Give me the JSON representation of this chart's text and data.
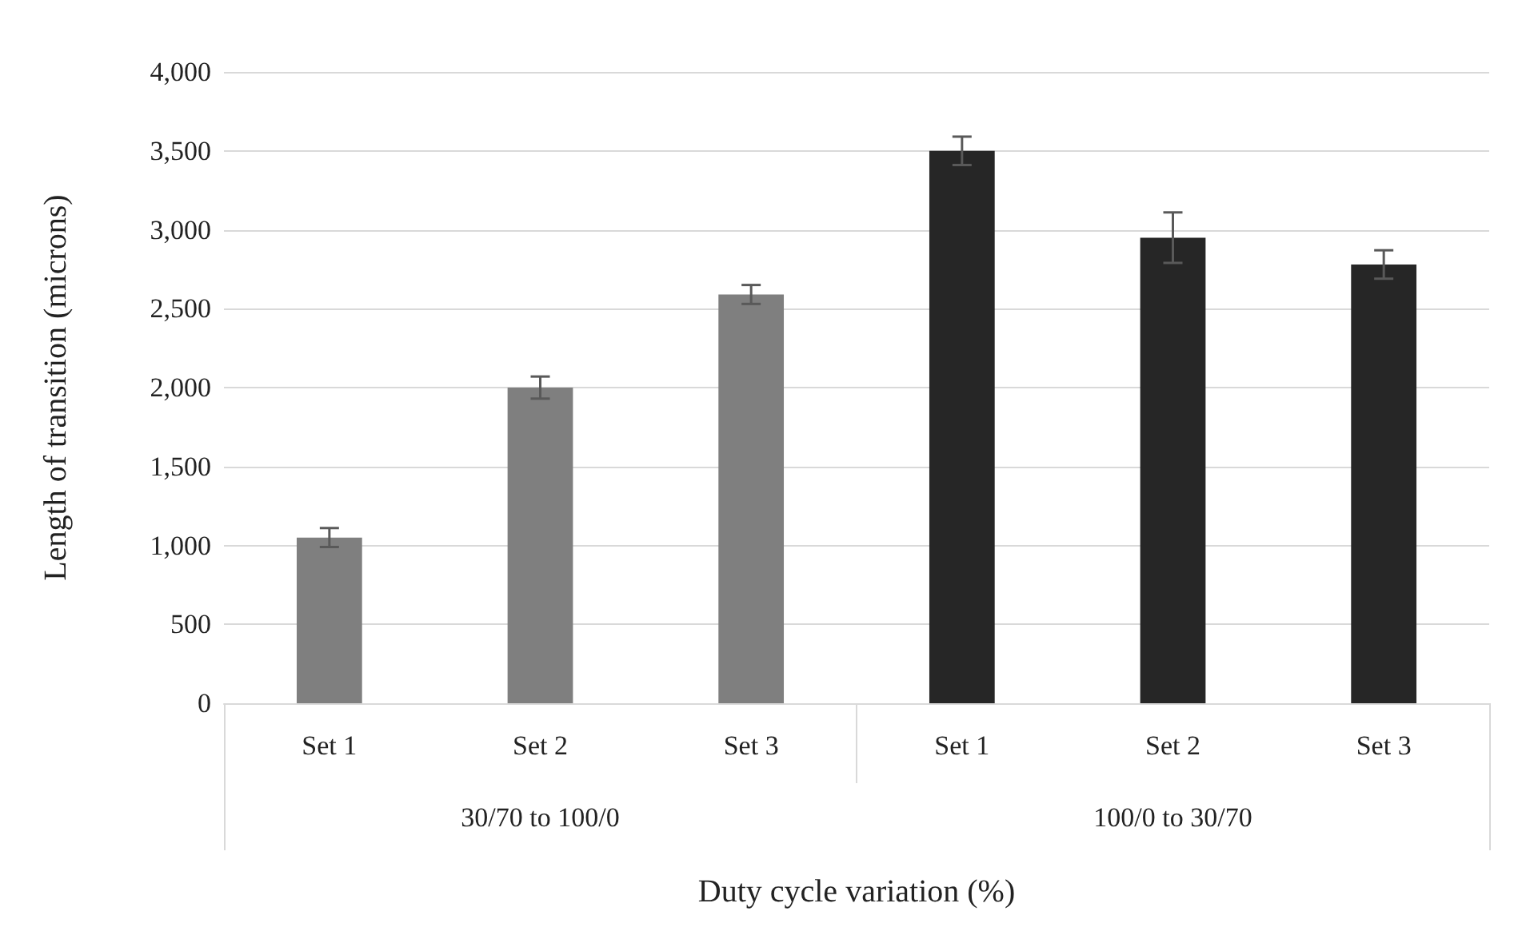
{
  "chart_data": {
    "type": "bar",
    "xlabel": "Duty cycle variation (%)",
    "ylabel": "Length of transition (microns)",
    "categories": [
      "Set 1",
      "Set 2",
      "Set 3",
      "Set 1",
      "Set 2",
      "Set 3"
    ],
    "values": [
      1050,
      2000,
      2590,
      3500,
      2950,
      2780
    ],
    "errors": [
      60,
      70,
      60,
      90,
      160,
      90
    ],
    "colors": [
      "#7f7f7f",
      "#7f7f7f",
      "#7f7f7f",
      "#262626",
      "#262626",
      "#262626"
    ],
    "annotations": [
      "30/70 to 100/0",
      "100/0 to 30/70"
    ],
    "ylim": [
      0,
      4000
    ],
    "yticks": [
      0,
      500,
      {
        "value": 1000,
        "label": "1,000"
      },
      {
        "value": 1500,
        "label": "1,500"
      },
      {
        "value": 2000,
        "label": "2,000"
      },
      {
        "value": 2500,
        "label": "2,500"
      },
      {
        "value": 3000,
        "label": "3,000"
      },
      {
        "value": 3500,
        "label": "3,500"
      },
      {
        "value": 4000,
        "label": "4,000"
      }
    ],
    "grid": "y"
  }
}
